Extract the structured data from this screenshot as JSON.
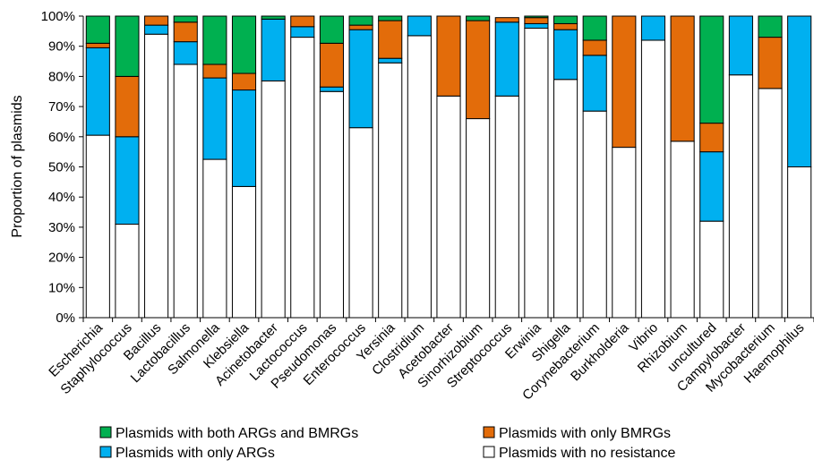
{
  "chart_data": {
    "type": "bar",
    "stacked": true,
    "ylabel": "Proportion of plasmids",
    "ylim": [
      0,
      100
    ],
    "yticks": [
      "0%",
      "10%",
      "20%",
      "30%",
      "40%",
      "50%",
      "60%",
      "70%",
      "80%",
      "90%",
      "100%"
    ],
    "categories": [
      "Escherichia",
      "Staphylococcus",
      "Bacillus",
      "Lactobacillus",
      "Salmonella",
      "Klebsiella",
      "Acinetobacter",
      "Lactococcus",
      "Pseudomonas",
      "Enterococcus",
      "Yersinia",
      "Clostridium",
      "Acetobacter",
      "Sinorhizobium",
      "Streptococcus",
      "Erwinia",
      "Shigella",
      "Corynebacterium",
      "Burkholderia",
      "Vibrio",
      "Rhizobium",
      "uncultured",
      "Campylobacter",
      "Mycobacterium",
      "Haemophilus"
    ],
    "series": [
      {
        "name": "Plasmids with no resistance",
        "color": "#ffffff",
        "values": [
          60.5,
          31,
          94,
          84,
          52.5,
          43.5,
          78.5,
          93,
          75,
          63,
          84.5,
          93.5,
          73.5,
          66,
          73.5,
          96,
          79,
          68.5,
          56.5,
          92,
          58.5,
          32,
          80.5,
          76,
          50
        ]
      },
      {
        "name": "Plasmids with only ARGs",
        "color": "#00b0f0",
        "values": [
          29,
          29,
          3,
          7.5,
          27,
          32,
          20.5,
          3.5,
          1.5,
          32.5,
          1.5,
          6.5,
          0,
          0,
          24.5,
          1.5,
          16.5,
          18.5,
          0,
          8,
          0,
          23,
          19.5,
          0,
          50
        ]
      },
      {
        "name": "Plasmids with only BMRGs",
        "color": "#e36c0a",
        "values": [
          1.5,
          20,
          3,
          6.5,
          4.5,
          5.5,
          0,
          3.5,
          14.5,
          1.5,
          12.5,
          0,
          26.5,
          32.5,
          1.5,
          2,
          2,
          5,
          43.5,
          0,
          41.5,
          9.5,
          0,
          17,
          0
        ]
      },
      {
        "name": "Plasmids with both ARGs and BMRGs",
        "color": "#00b050",
        "values": [
          9,
          20,
          0,
          2,
          16,
          19,
          1,
          0,
          9,
          3,
          1.5,
          0,
          0,
          1.5,
          0,
          0.5,
          2.5,
          8,
          0,
          0,
          0,
          35.5,
          0,
          7,
          0
        ]
      }
    ],
    "legend": {
      "position": "bottom",
      "entries": [
        {
          "label": "Plasmids with both ARGs and BMRGs",
          "color": "#00b050"
        },
        {
          "label": "Plasmids with only BMRGs",
          "color": "#e36c0a"
        },
        {
          "label": "Plasmids with only ARGs",
          "color": "#00b0f0"
        },
        {
          "label": "Plasmids with no resistance",
          "color": "#ffffff"
        }
      ]
    }
  }
}
